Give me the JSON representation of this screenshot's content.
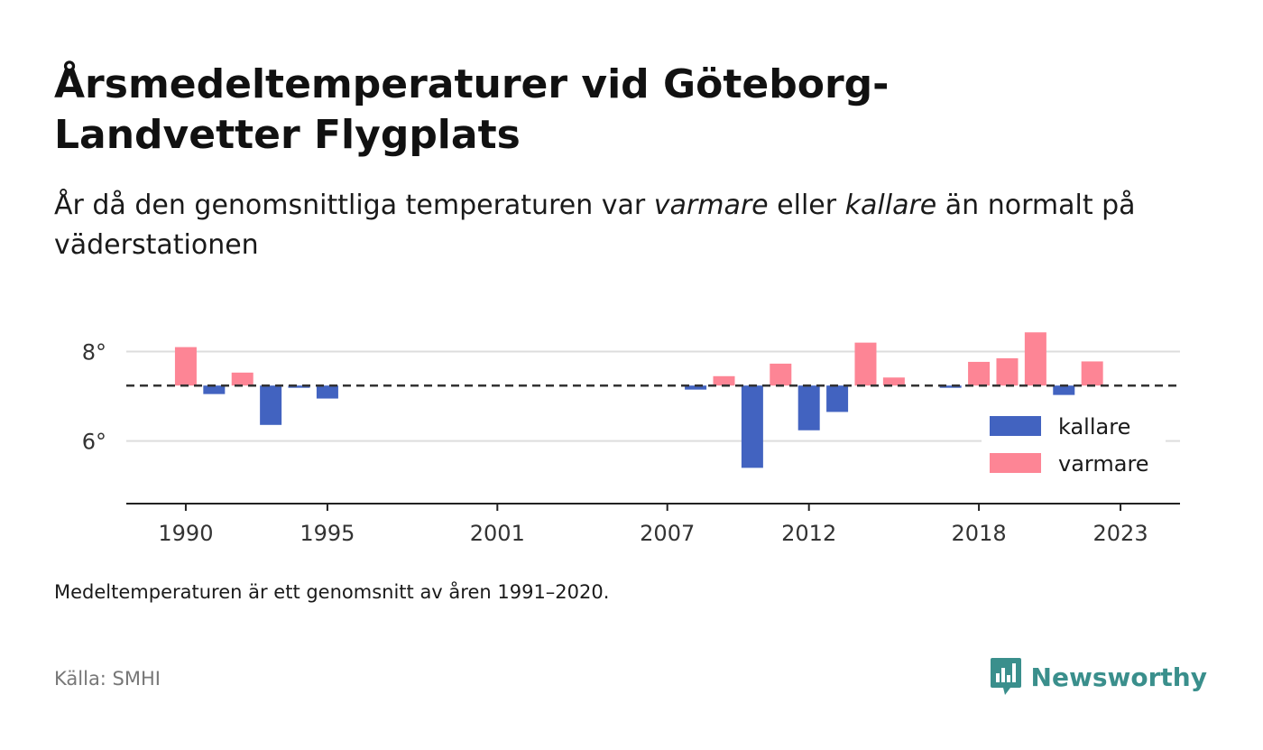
{
  "title": "Årsmedeltemperaturer vid Göteborg-Landvetter Flygplats",
  "subtitle": {
    "part1": "År då den genomsnittliga temperaturen var ",
    "em1": "varmare",
    "part2": " eller ",
    "em2": "kallare",
    "part3": " än normalt på väderstationen"
  },
  "note": "Medeltemperaturen är ett genomsnitt av åren 1991–2020.",
  "source": "Källa: SMHI",
  "brand": {
    "name": "Newsworthy",
    "icon": "newsworthy-logo-icon",
    "color": "#3a8f8c"
  },
  "colors": {
    "kallare": "#4263c0",
    "varmare": "#fd8595",
    "reference": "#333333",
    "grid": "#dddddd",
    "axis": "#222222"
  },
  "chart_data": {
    "type": "bar",
    "baseline": 7.24,
    "yticks": [
      {
        "value": 6,
        "label": "6°"
      },
      {
        "value": 8,
        "label": "8°"
      }
    ],
    "ylim": [
      4.6,
      9.0
    ],
    "xlim": [
      1987.9,
      2025.1
    ],
    "xticks": [
      1990,
      1995,
      2001,
      2007,
      2012,
      2018,
      2023
    ],
    "legend": [
      {
        "key": "kallare",
        "label": "kallare"
      },
      {
        "key": "varmare",
        "label": "varmare"
      }
    ],
    "legend_position": "right",
    "bars": [
      {
        "year": 1990,
        "value": 8.1
      },
      {
        "year": 1991,
        "value": 7.05
      },
      {
        "year": 1992,
        "value": 7.53
      },
      {
        "year": 1993,
        "value": 6.36
      },
      {
        "year": 1994,
        "value": 7.19
      },
      {
        "year": 1995,
        "value": 6.95
      },
      {
        "year": 2008,
        "value": 7.15
      },
      {
        "year": 2009,
        "value": 7.45
      },
      {
        "year": 2010,
        "value": 5.4
      },
      {
        "year": 2011,
        "value": 7.73
      },
      {
        "year": 2012,
        "value": 6.24
      },
      {
        "year": 2013,
        "value": 6.65
      },
      {
        "year": 2014,
        "value": 8.2
      },
      {
        "year": 2015,
        "value": 7.42
      },
      {
        "year": 2017,
        "value": 7.19
      },
      {
        "year": 2018,
        "value": 7.77
      },
      {
        "year": 2019,
        "value": 7.85
      },
      {
        "year": 2020,
        "value": 8.43
      },
      {
        "year": 2021,
        "value": 7.03
      },
      {
        "year": 2022,
        "value": 7.78
      }
    ]
  }
}
